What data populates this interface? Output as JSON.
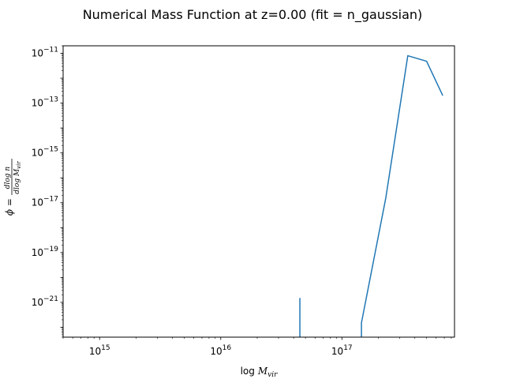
{
  "chart_data": {
    "type": "line",
    "title": "Numerical Mass Function at z=0.00 (fit = n_gaussian)",
    "xlabel": "log M_vir",
    "ylabel": "φ = dlog n / dlog M_vir",
    "xscale": "log",
    "yscale": "log",
    "xlim": [
      500000000000000.0,
      8.5e+17
    ],
    "ylim": [
      4e-23,
      2e-11
    ],
    "grid": false,
    "x_ticks": [
      {
        "value": 1000000000000000.0,
        "base": "10",
        "exp": "15"
      },
      {
        "value": 1e+16,
        "base": "10",
        "exp": "16"
      },
      {
        "value": 1e+17,
        "base": "10",
        "exp": "17"
      }
    ],
    "y_ticks": [
      {
        "value": 1e-21,
        "base": "10",
        "exp": "−21"
      },
      {
        "value": 1e-19,
        "base": "10",
        "exp": "−19"
      },
      {
        "value": 1e-17,
        "base": "10",
        "exp": "−17"
      },
      {
        "value": 1e-15,
        "base": "10",
        "exp": "−15"
      },
      {
        "value": 1e-13,
        "base": "10",
        "exp": "−13"
      },
      {
        "value": 1e-11,
        "base": "10",
        "exp": "−11"
      }
    ],
    "series": [
      {
        "color": "#1f77b4",
        "segments": [
          [
            [
              4.5e+16,
              1.5e-21
            ],
            [
              4.5e+16,
              4e-23
            ]
          ],
          [
            [
              1.45e+17,
              4e-23
            ],
            [
              1.45e+17,
              1.5e-22
            ],
            [
              2.3e+17,
              1.5e-17
            ],
            [
              3.5e+17,
              8e-12
            ],
            [
              5e+17,
              4.8e-12
            ],
            [
              6.8e+17,
              2e-13
            ]
          ]
        ]
      }
    ]
  }
}
